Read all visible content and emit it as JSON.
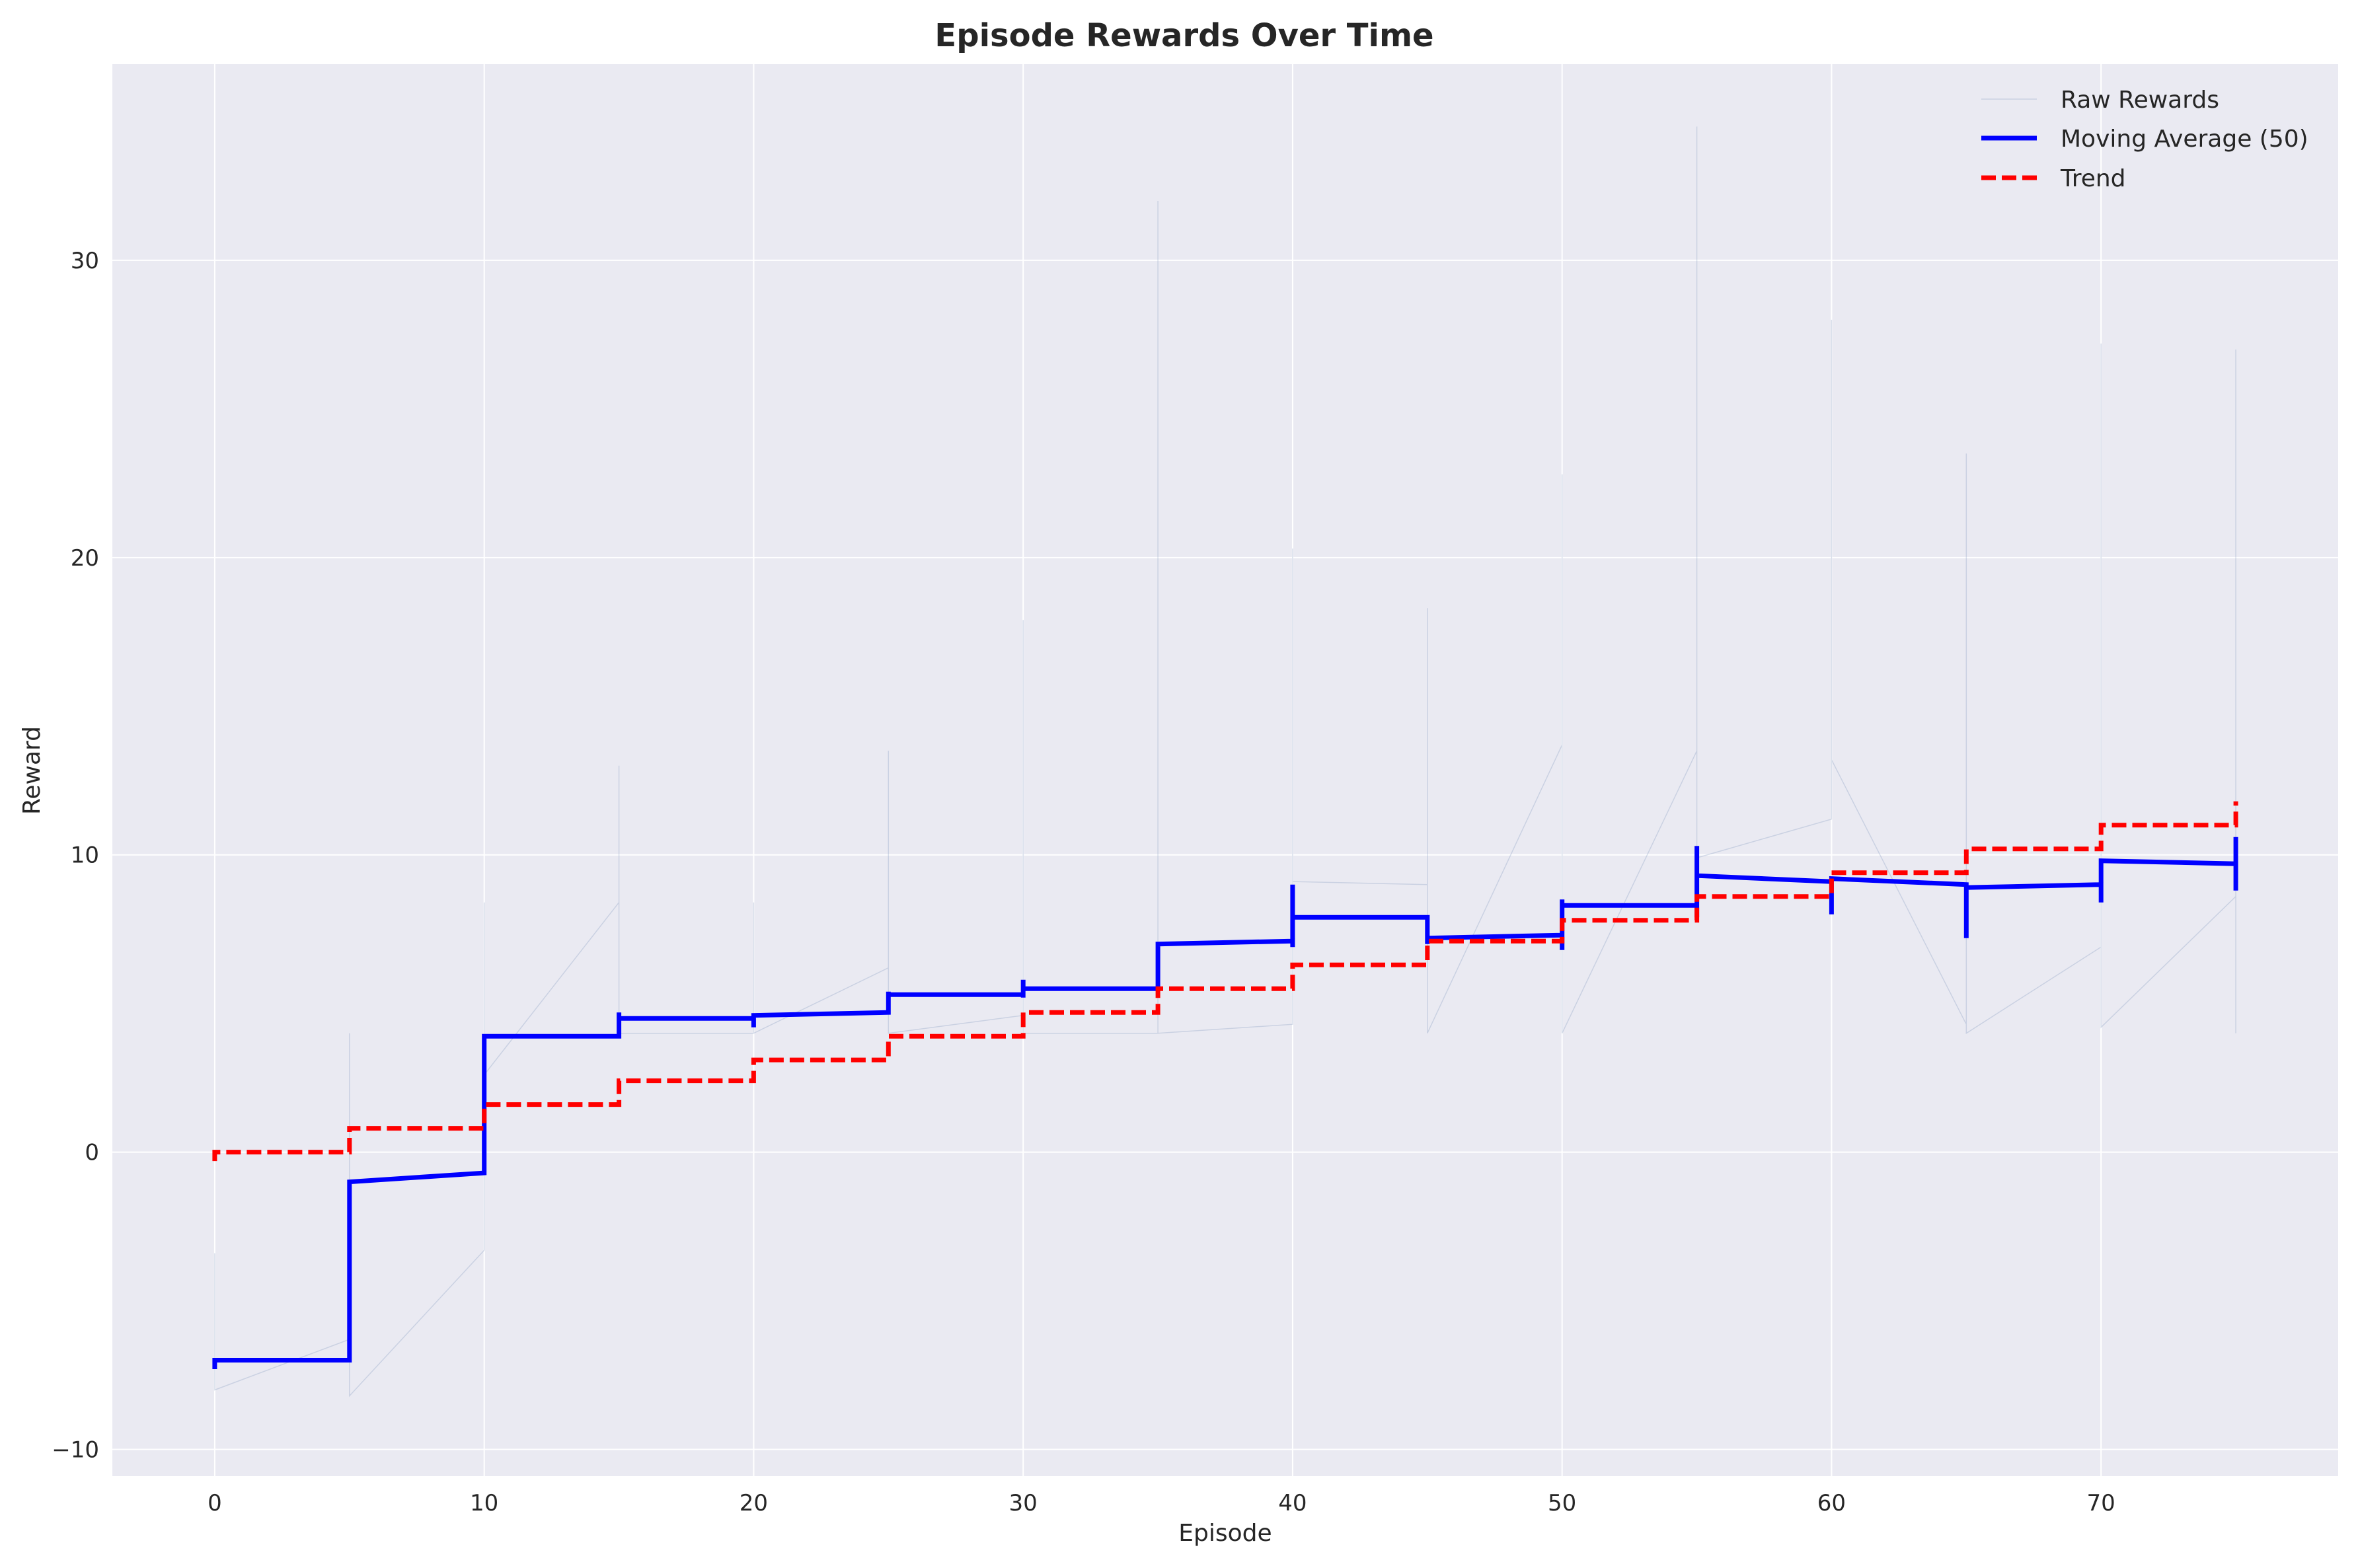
{
  "chart_data": {
    "type": "line",
    "title": "Episode Rewards Over Time",
    "xlabel": "Episode",
    "ylabel": "Reward",
    "xlim": [
      -3.8,
      78.8
    ],
    "ylim": [
      -10.9,
      36.6
    ],
    "xticks": [
      0,
      10,
      20,
      30,
      40,
      50,
      60,
      70
    ],
    "yticks": [
      -10,
      0,
      10,
      20,
      30
    ],
    "grid": true,
    "legend_position": "top-right",
    "legend": [
      "Raw Rewards",
      "Moving Average (50)",
      "Trend"
    ],
    "series": [
      {
        "name": "Raw Rewards",
        "color": "#8fa3c7",
        "style": "solid-thin",
        "points": [
          [
            0,
            -3.4
          ],
          [
            0,
            -8.0
          ],
          [
            5,
            -6.3
          ],
          [
            5,
            4.0
          ],
          [
            5,
            -8.2
          ],
          [
            10,
            -3.3
          ],
          [
            10,
            8.4
          ],
          [
            10,
            2.6
          ],
          [
            15,
            8.4
          ],
          [
            15,
            13.0
          ],
          [
            15,
            4.0
          ],
          [
            20,
            4.0
          ],
          [
            20,
            8.4
          ],
          [
            20,
            4.0
          ],
          [
            25,
            6.2
          ],
          [
            25,
            13.5
          ],
          [
            25,
            4.0
          ],
          [
            30,
            4.6
          ],
          [
            30,
            17.9
          ],
          [
            30,
            4.0
          ],
          [
            35,
            4.0
          ],
          [
            35,
            32.0
          ],
          [
            35,
            4.0
          ],
          [
            40,
            4.3
          ],
          [
            40,
            20.3
          ],
          [
            40,
            9.1
          ],
          [
            45,
            9.0
          ],
          [
            45,
            18.3
          ],
          [
            45,
            4.0
          ],
          [
            50,
            13.7
          ],
          [
            50,
            22.8
          ],
          [
            50,
            4.0
          ],
          [
            55,
            13.5
          ],
          [
            55,
            34.5
          ],
          [
            55,
            9.9
          ],
          [
            60,
            11.2
          ],
          [
            60,
            28.0
          ],
          [
            60,
            13.2
          ],
          [
            65,
            4.3
          ],
          [
            65,
            23.5
          ],
          [
            65,
            4.0
          ],
          [
            70,
            6.9
          ],
          [
            70,
            27.2
          ],
          [
            70,
            4.2
          ],
          [
            75,
            8.6
          ],
          [
            75,
            27.0
          ],
          [
            75,
            4.0
          ]
        ]
      },
      {
        "name": "Moving Average (50)",
        "color": "#0000ff",
        "style": "solid",
        "points": [
          [
            0,
            -7.3
          ],
          [
            0,
            -7.0
          ],
          [
            5,
            -7.0
          ],
          [
            5,
            -1.0
          ],
          [
            10,
            -0.7
          ],
          [
            10,
            3.9
          ],
          [
            15,
            3.9
          ],
          [
            15,
            4.7
          ],
          [
            15,
            4.5
          ],
          [
            20,
            4.5
          ],
          [
            20,
            4.2
          ],
          [
            20,
            4.6
          ],
          [
            25,
            4.7
          ],
          [
            25,
            5.4
          ],
          [
            25,
            5.3
          ],
          [
            30,
            5.3
          ],
          [
            30,
            5.2
          ],
          [
            30,
            5.8
          ],
          [
            30,
            5.5
          ],
          [
            35,
            5.5
          ],
          [
            35,
            7.0
          ],
          [
            40,
            7.1
          ],
          [
            40,
            6.9
          ],
          [
            40,
            9.0
          ],
          [
            40,
            7.9
          ],
          [
            45,
            7.9
          ],
          [
            45,
            7.0
          ],
          [
            45,
            7.2
          ],
          [
            50,
            7.3
          ],
          [
            50,
            6.8
          ],
          [
            50,
            8.5
          ],
          [
            50,
            8.3
          ],
          [
            55,
            8.3
          ],
          [
            55,
            7.9
          ],
          [
            55,
            10.3
          ],
          [
            55,
            9.3
          ],
          [
            60,
            9.1
          ],
          [
            60,
            8.0
          ],
          [
            60,
            9.2
          ],
          [
            65,
            9.0
          ],
          [
            65,
            7.2
          ],
          [
            65,
            8.9
          ],
          [
            70,
            9.0
          ],
          [
            70,
            8.4
          ],
          [
            70,
            9.8
          ],
          [
            75,
            9.7
          ],
          [
            75,
            8.8
          ],
          [
            75,
            10.6
          ]
        ]
      },
      {
        "name": "Trend",
        "color": "#ff0000",
        "style": "dashed",
        "points": [
          [
            0,
            -0.3
          ],
          [
            0,
            0.0
          ],
          [
            5,
            0.0
          ],
          [
            5,
            0.8
          ],
          [
            10,
            0.8
          ],
          [
            10,
            1.6
          ],
          [
            15,
            1.6
          ],
          [
            15,
            2.4
          ],
          [
            20,
            2.4
          ],
          [
            20,
            3.1
          ],
          [
            25,
            3.1
          ],
          [
            25,
            3.9
          ],
          [
            30,
            3.9
          ],
          [
            30,
            4.7
          ],
          [
            35,
            4.7
          ],
          [
            35,
            5.5
          ],
          [
            40,
            5.5
          ],
          [
            40,
            6.3
          ],
          [
            45,
            6.3
          ],
          [
            45,
            7.1
          ],
          [
            50,
            7.1
          ],
          [
            50,
            7.8
          ],
          [
            55,
            7.8
          ],
          [
            55,
            8.6
          ],
          [
            60,
            8.6
          ],
          [
            60,
            9.4
          ],
          [
            65,
            9.4
          ],
          [
            65,
            10.2
          ],
          [
            70,
            10.2
          ],
          [
            70,
            11.0
          ],
          [
            75,
            11.0
          ],
          [
            75,
            11.8
          ]
        ]
      }
    ]
  }
}
